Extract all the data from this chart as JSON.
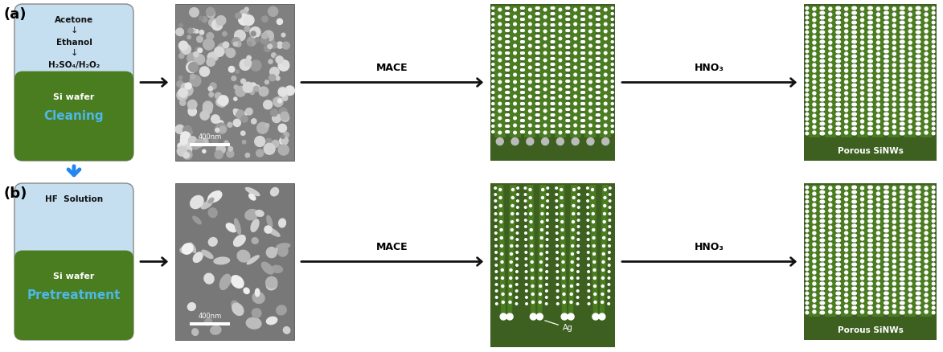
{
  "fig_width": 11.73,
  "fig_height": 4.38,
  "bg_color": "#ffffff",
  "label_a": "(a)",
  "label_b": "(b)",
  "box_top_color": "#c5dff0",
  "box_bottom_color": "#4a7c20",
  "light_blue": "#4db8e8",
  "dark_green": "#3d6020",
  "wire_green": "#4a7c20",
  "white": "#ffffff",
  "arrow_color": "#111111",
  "blue_arrow_color": "#2288ee",
  "mace_label": "MACE",
  "hno3_label": "HNO₃",
  "porous_sinws_label": "Porous SiNWs",
  "ag_label": "Ag",
  "box_text_a1": "Acetone",
  "box_text_a2": "Ethanol",
  "box_text_a3": "H₂SO₄/H₂O₂",
  "box_text_a_si": "Si wafer",
  "box_text_a_proc": "Cleaning",
  "box_text_b1": "HF  Solution",
  "box_text_b_si": "Si wafer",
  "box_text_b_proc": "Pretreatment",
  "sem_gray": "#909090",
  "scale_bar_label": "400nm"
}
